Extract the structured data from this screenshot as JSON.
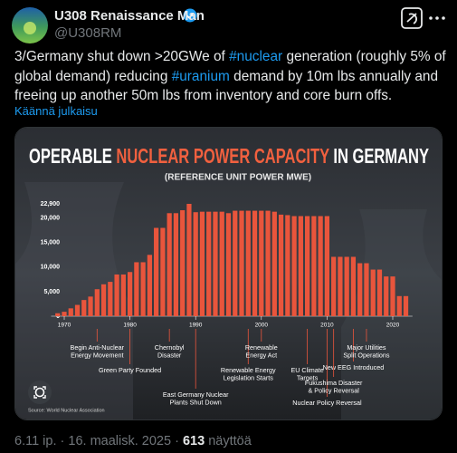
{
  "author": {
    "name": "U308 Renaissance Man",
    "handle": "@U308RM"
  },
  "tweet": {
    "text": [
      {
        "text": "3/Germany shut down >20GWe of "
      },
      {
        "text": "#nuclear",
        "hashtag": true
      },
      {
        "text": " generation (roughly 5% of global demand)  reducing "
      },
      {
        "text": "#uranium",
        "hashtag": true
      },
      {
        "text": " demand by 10m lbs annually and freeing up another 50m lbs from inventory and core burn offs."
      }
    ],
    "translate": "Käännä julkaisu"
  },
  "footer": {
    "time": "6.11 ip.",
    "separator": "·",
    "date": "16. maalisk. 2025",
    "views": "613",
    "views_label": "näyttöä"
  },
  "chart_data": {
    "type": "bar",
    "title": [
      {
        "text": "OPERABLE "
      },
      {
        "text": "NUCLEAR POWER CAPACITY",
        "color": "#f0603f"
      },
      {
        "text": " IN GERMANY"
      }
    ],
    "subtitle": "(REFERENCE UNIT POWER MWE)",
    "source": "Source: World Nuclear Association",
    "color": "#e9553c",
    "x": [
      1969,
      1970,
      1971,
      1972,
      1973,
      1974,
      1975,
      1976,
      1977,
      1978,
      1979,
      1980,
      1981,
      1982,
      1983,
      1984,
      1985,
      1986,
      1987,
      1988,
      1989,
      1990,
      1991,
      1992,
      1993,
      1994,
      1995,
      1996,
      1997,
      1998,
      1999,
      2000,
      2001,
      2002,
      2003,
      2004,
      2005,
      2006,
      2007,
      2008,
      2009,
      2010,
      2011,
      2012,
      2013,
      2014,
      2015,
      2016,
      2017,
      2018,
      2019,
      2020,
      2021,
      2022
    ],
    "values": [
      600,
      900,
      1600,
      2300,
      3300,
      4000,
      5500,
      6500,
      7000,
      8500,
      8500,
      9000,
      11000,
      11000,
      12500,
      18000,
      18000,
      21000,
      21000,
      21600,
      22900,
      21200,
      21300,
      21300,
      21300,
      21300,
      21000,
      21500,
      21500,
      21500,
      21500,
      21500,
      21500,
      21300,
      20700,
      20600,
      20400,
      20400,
      20400,
      20400,
      20400,
      20400,
      12100,
      12100,
      12100,
      12100,
      10800,
      10800,
      9500,
      9500,
      8100,
      8100,
      4100,
      4100
    ],
    "xlim": [
      1968,
      2023
    ],
    "xticks": [
      1970,
      1980,
      1990,
      2000,
      2010,
      2020
    ],
    "ylim": [
      0,
      22900
    ],
    "yticks": [
      0,
      {
        "value": 5000,
        "label": "5,000"
      },
      {
        "value": 10000,
        "label": "10,000"
      },
      {
        "value": 15000,
        "label": "15,000"
      },
      {
        "value": 20000,
        "label": "20,000"
      },
      {
        "value": 22900,
        "label": "22,900"
      }
    ],
    "annotations": [
      {
        "lines": [
          "Begin Anti-Nuclear",
          "Energy Movement"
        ],
        "x": 1975
      },
      {
        "lines": [
          "Green Party Founded"
        ],
        "x": 1980
      },
      {
        "lines": [
          "Chernobyl",
          "Disaster"
        ],
        "x": 1986
      },
      {
        "lines": [
          "East Germany Nuclear",
          "Plants Shut Down"
        ],
        "x": 1990
      },
      {
        "lines": [
          "Renewable Energy",
          "Legislation Starts"
        ],
        "x": 1998
      },
      {
        "lines": [
          "Renewable",
          "Energy Act"
        ],
        "x": 2000
      },
      {
        "lines": [
          "EU Climate",
          "Targets"
        ],
        "x": 2007
      },
      {
        "lines": [
          "Nuclear Policy Reversal"
        ],
        "x": 2010
      },
      {
        "lines": [
          "New EEG Introduced"
        ],
        "x": 2014
      },
      {
        "lines": [
          "Fukushima Disaster",
          "& Policy Reversal"
        ],
        "x": 2011
      },
      {
        "lines": [
          "Major Utilities",
          "Split Operations"
        ],
        "x": 2016
      }
    ]
  }
}
